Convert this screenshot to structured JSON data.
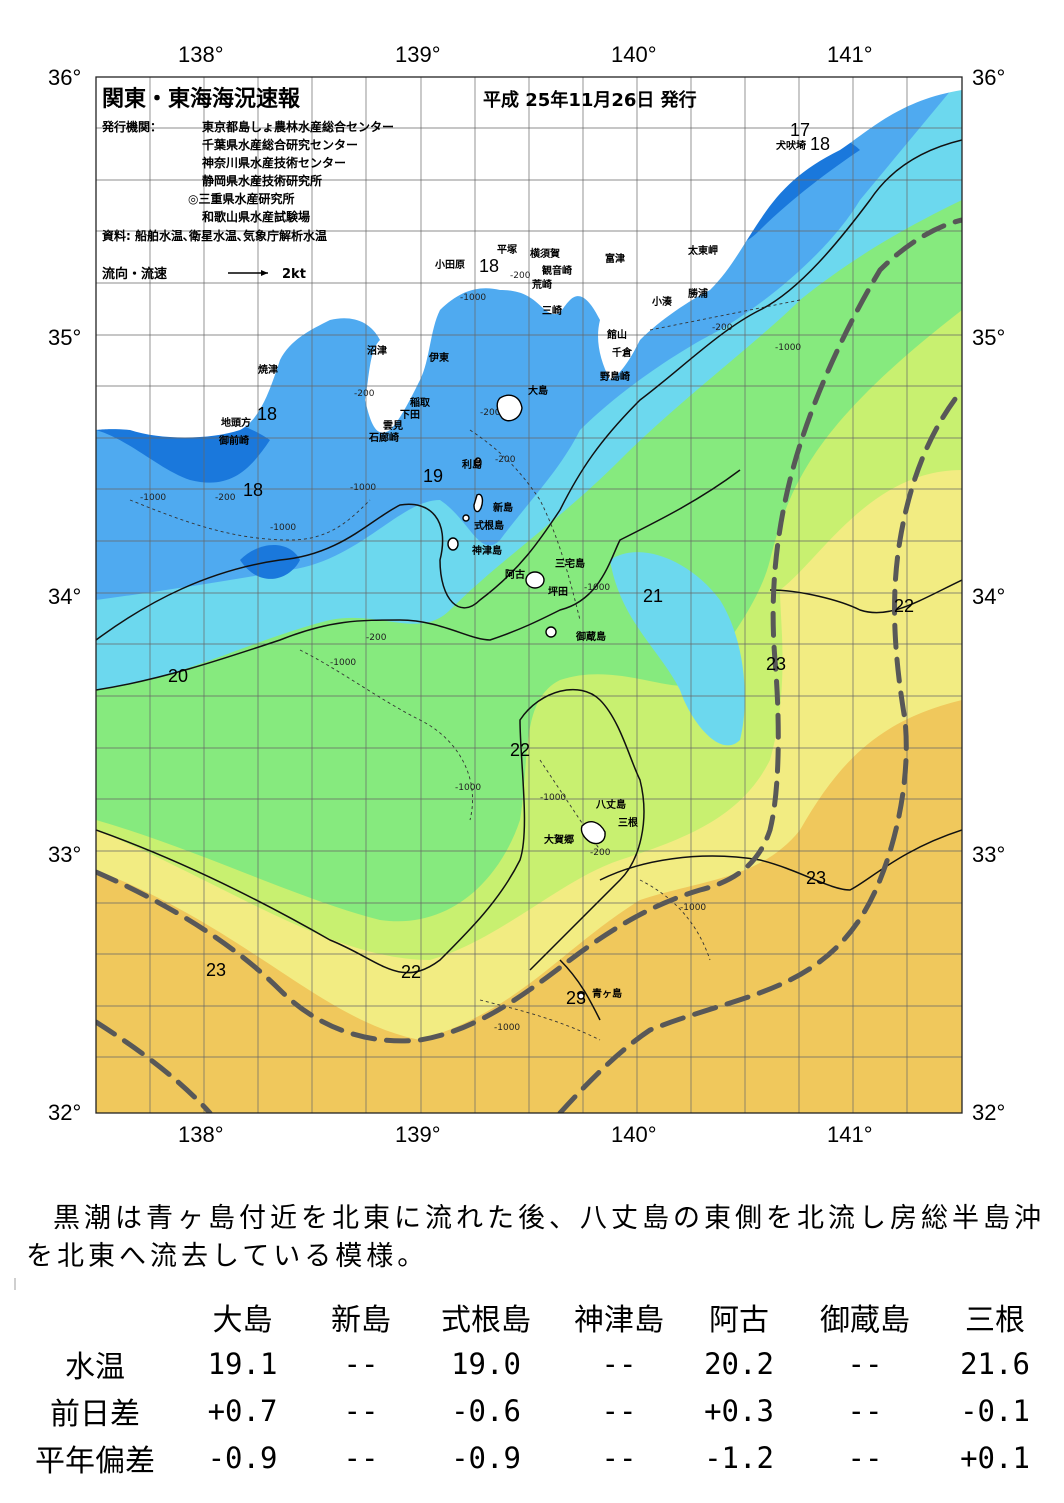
{
  "title": "関東・東海海況速報",
  "issue_date": "平成 25年11月26日 発行",
  "issuers": {
    "label": "発行機関：",
    "orgs": [
      "東京都島しょ農林水産総合センター",
      "千葉県水産総合研究センター",
      "神奈川県水産技術センター",
      "静岡県水産技術研究所",
      "◎三重県水産研究所",
      "和歌山県水産試験場"
    ]
  },
  "source": "資料: 船舶水温､衛星水温､気象庁解析水温",
  "current_legend": {
    "label": "流向・流速",
    "scale": "2kt"
  },
  "axes": {
    "lon_labels": [
      "138°",
      "139°",
      "140°",
      "141°"
    ],
    "lat_labels": [
      "36°",
      "35°",
      "34°",
      "33°",
      "32°"
    ],
    "lon_range": [
      137.5,
      141.5
    ],
    "lat_range": [
      32.0,
      36.0
    ]
  },
  "isotherm_labels": [
    "17",
    "18",
    "18",
    "18",
    "18",
    "19",
    "20",
    "21",
    "22",
    "22",
    "22",
    "23",
    "23",
    "23",
    "23",
    "23"
  ],
  "depth_labels": [
    "-200",
    "-1000"
  ],
  "place_names": [
    "犬吠埼",
    "太東岬",
    "勝浦",
    "小湊",
    "富津",
    "横須賀",
    "観音崎",
    "荒崎",
    "三崎",
    "平塚",
    "小田原",
    "館山",
    "千倉",
    "野島崎",
    "沼津",
    "伊東",
    "焼津",
    "稲取",
    "下田",
    "雲見",
    "石廊崎",
    "地頭方",
    "御前崎",
    "大島",
    "利島",
    "新島",
    "式根島",
    "神津島",
    "三宅島",
    "阿古",
    "坪田",
    "御蔵島",
    "八丈島",
    "三根",
    "大賀郷",
    "青ヶ島"
  ],
  "colors": {
    "very_cold": "#1a78dc",
    "cold": "#4faaf0",
    "cool": "#6cd8ee",
    "mid": "#86ea7e",
    "warm": "#c8f070",
    "warmer": "#f2ec82",
    "warmest": "#f0c85c",
    "land": "#ffffff",
    "kuroshio_axis": "#585858"
  },
  "summary": "黒潮は青ヶ島付近を北東に流れた後、八丈島の東側を北流し房総半島沖を北東へ流去している模様。",
  "table": {
    "stations": [
      "大島",
      "新島",
      "式根島",
      "神津島",
      "阿古",
      "御蔵島",
      "三根"
    ],
    "rows": [
      {
        "label": "水温",
        "values": [
          "19.1",
          "--",
          "19.0",
          "--",
          "20.2",
          "--",
          "21.6"
        ]
      },
      {
        "label": "前日差",
        "values": [
          "+0.7",
          "--",
          "-0.6",
          "--",
          "+0.3",
          "--",
          "-0.1"
        ]
      },
      {
        "label": "平年偏差",
        "values": [
          "-0.9",
          "--",
          "-0.9",
          "--",
          "-1.2",
          "--",
          "+0.1"
        ]
      }
    ]
  }
}
